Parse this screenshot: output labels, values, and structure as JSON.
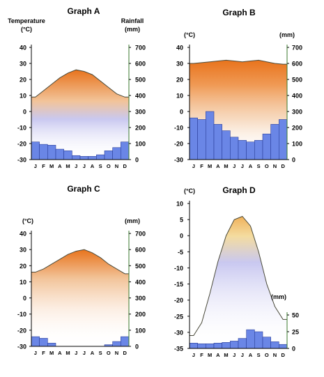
{
  "colors": {
    "bar_fill": "#6a86e6",
    "bar_stroke": "#2b3f9a",
    "axis": "#000000",
    "axis_accent": "#3a7a2e",
    "grad_hot": "#e8731c",
    "grad_warm": "#f2c49a",
    "grad_cool": "#c9c8f0"
  },
  "chart_data": [
    {
      "type": "bar+line",
      "title": "Graph A",
      "left_axis_label": [
        "Temperature",
        "(°C)"
      ],
      "right_axis_label": [
        "Rainfall",
        "(mm)"
      ],
      "categories": [
        "J",
        "F",
        "M",
        "A",
        "M",
        "J",
        "J",
        "A",
        "S",
        "O",
        "N",
        "D"
      ],
      "temp_ticks": [
        40,
        30,
        20,
        10,
        0,
        -10,
        -20,
        -30
      ],
      "rain_ticks": [
        700,
        600,
        500,
        400,
        300,
        200,
        100,
        0
      ],
      "temp_range": [
        -30,
        40
      ],
      "rain_range": [
        0,
        700
      ],
      "temperature": [
        9,
        13,
        17,
        21,
        24,
        26,
        25,
        23,
        19,
        15,
        11,
        9
      ],
      "rainfall": [
        110,
        95,
        90,
        65,
        55,
        25,
        20,
        20,
        30,
        55,
        75,
        110
      ]
    },
    {
      "type": "bar+line",
      "title": "Graph B",
      "left_axis_label": [
        "(°C)"
      ],
      "right_axis_label": [
        "(mm)"
      ],
      "categories": [
        "J",
        "F",
        "M",
        "A",
        "M",
        "J",
        "J",
        "A",
        "S",
        "O",
        "N",
        "D"
      ],
      "temp_ticks": [
        40,
        30,
        20,
        10,
        0,
        -10,
        -20,
        -30
      ],
      "rain_ticks": [
        700,
        600,
        500,
        400,
        300,
        200,
        100,
        0
      ],
      "temp_range": [
        -30,
        40
      ],
      "rain_range": [
        0,
        700
      ],
      "temperature": [
        30,
        30.5,
        31,
        31.5,
        32,
        31.5,
        31,
        31.5,
        32,
        31,
        30,
        29.5
      ],
      "rainfall": [
        260,
        250,
        300,
        220,
        180,
        140,
        120,
        110,
        120,
        160,
        220,
        250
      ]
    },
    {
      "type": "bar+line",
      "title": "Graph C",
      "left_axis_label": [
        "(°C)"
      ],
      "right_axis_label": [
        "(mm)"
      ],
      "categories": [
        "J",
        "F",
        "M",
        "A",
        "M",
        "J",
        "J",
        "A",
        "S",
        "O",
        "N",
        "D"
      ],
      "temp_ticks": [
        40,
        30,
        20,
        10,
        0,
        -10,
        -20,
        -30
      ],
      "rain_ticks": [
        700,
        600,
        500,
        400,
        300,
        200,
        100,
        0
      ],
      "temp_range": [
        -30,
        40
      ],
      "rain_range": [
        0,
        700
      ],
      "temperature": [
        16,
        18,
        21,
        24,
        27,
        29,
        30,
        28,
        25,
        21,
        18,
        15
      ],
      "rainfall": [
        60,
        50,
        20,
        0,
        0,
        0,
        0,
        0,
        0,
        10,
        30,
        60
      ]
    },
    {
      "type": "bar+line",
      "title": "Graph D",
      "left_axis_label": [
        "(°C)"
      ],
      "right_axis_label": [
        "(mm)"
      ],
      "categories": [
        "J",
        "F",
        "M",
        "A",
        "M",
        "J",
        "J",
        "A",
        "S",
        "O",
        "N",
        "D"
      ],
      "temp_ticks": [
        10,
        5,
        0,
        -5,
        -10,
        -15,
        -20,
        -25,
        -30,
        -35
      ],
      "rain_ticks": [
        50,
        25,
        0
      ],
      "temp_range": [
        -35,
        10
      ],
      "rain_range": [
        0,
        50
      ],
      "temperature": [
        -31,
        -27,
        -18,
        -8,
        0,
        5,
        6,
        3,
        -5,
        -15,
        -22,
        -26
      ],
      "rainfall": [
        8,
        7,
        7,
        8,
        9,
        11,
        15,
        28,
        25,
        17,
        10,
        6
      ]
    }
  ]
}
